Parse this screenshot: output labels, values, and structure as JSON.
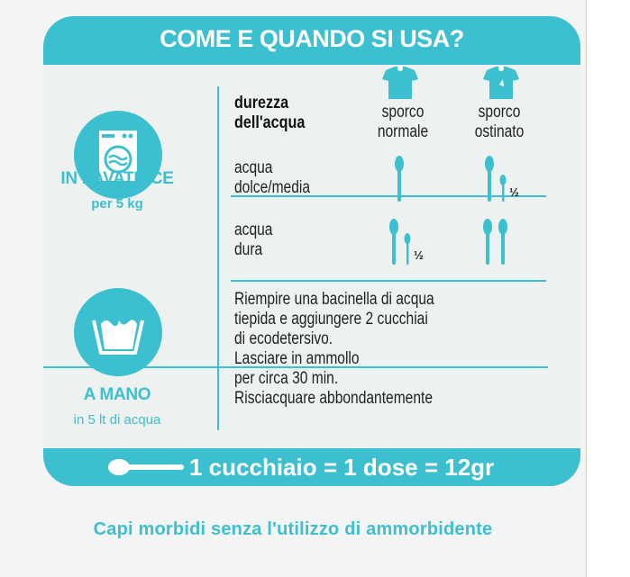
{
  "title": "COME E QUANDO SI USA?",
  "machine": {
    "icon": "washing-machine-icon",
    "label": "IN LAVATRICE",
    "sublabel": "per 5 kg",
    "table": {
      "header": [
        "durezza",
        "dell'acqua"
      ],
      "columns": [
        {
          "icon": "tshirt-icon",
          "lines": [
            "sporco",
            "normale"
          ]
        },
        {
          "icon": "stained-tshirt-icon",
          "lines": [
            "sporco",
            "ostinato"
          ]
        }
      ],
      "rows": [
        {
          "lines": [
            "acqua",
            "dolce/media"
          ],
          "doses": [
            "1",
            "1 ½"
          ]
        },
        {
          "lines": [
            "acqua",
            "dura"
          ],
          "doses": [
            "1 ½",
            "2"
          ]
        }
      ],
      "half_mark": "½"
    }
  },
  "hand": {
    "icon": "hand-wash-icon",
    "label": "A MANO",
    "sublabel": "in 5 lt di acqua",
    "instructions": [
      "Riempire una bacinella di acqua",
      "tiepida e aggiungere 2 cucchiai",
      "di ecodetersivo.",
      "Lasciare in ammollo",
      "per circa 30 min.",
      "Risciacquare abbondantemente"
    ]
  },
  "dose_bar": {
    "icon": "spoon-icon",
    "text": "1 cucchiaio = 1 dose = 12gr"
  },
  "footer": "Capi morbidi senza l'utilizzo di ammorbidente",
  "colors": {
    "accent": "#3cbfcf",
    "text": "#222222"
  }
}
